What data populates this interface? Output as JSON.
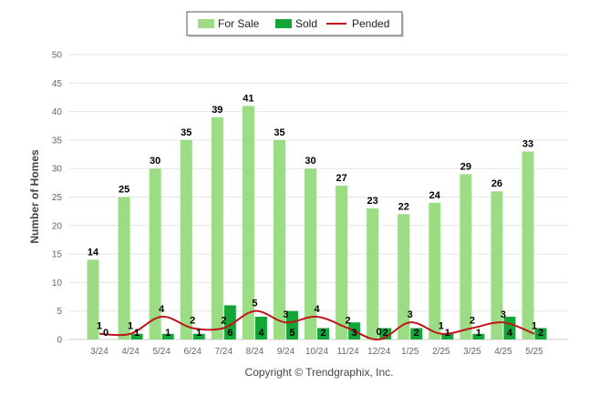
{
  "chart_data": {
    "type": "bar",
    "categories": [
      "3/24",
      "4/24",
      "5/24",
      "6/24",
      "7/24",
      "8/24",
      "9/24",
      "10/24",
      "11/24",
      "12/24",
      "1/25",
      "2/25",
      "3/25",
      "4/25",
      "5/25"
    ],
    "series": [
      {
        "name": "For Sale",
        "kind": "bar",
        "color": "#9bdc85",
        "values": [
          14,
          25,
          30,
          35,
          39,
          41,
          35,
          30,
          27,
          23,
          22,
          24,
          29,
          26,
          33
        ]
      },
      {
        "name": "Sold",
        "kind": "bar",
        "color": "#13a538",
        "values": [
          0,
          1,
          1,
          1,
          6,
          4,
          5,
          2,
          3,
          2,
          2,
          1,
          1,
          4,
          2
        ]
      },
      {
        "name": "Pended",
        "kind": "line",
        "color": "#c0141b",
        "values": [
          1,
          1,
          4,
          2,
          2,
          5,
          3,
          4,
          2,
          0,
          3,
          1,
          2,
          3,
          1
        ]
      }
    ],
    "ylabel": "Number of Homes",
    "xlabel": "",
    "ylim": [
      0,
      50
    ],
    "yticks": [
      0,
      5,
      10,
      15,
      20,
      25,
      30,
      35,
      40,
      45,
      50
    ],
    "grid": true,
    "legend_position": "top-center",
    "credit": "Copyright © Trendgraphix, Inc."
  }
}
